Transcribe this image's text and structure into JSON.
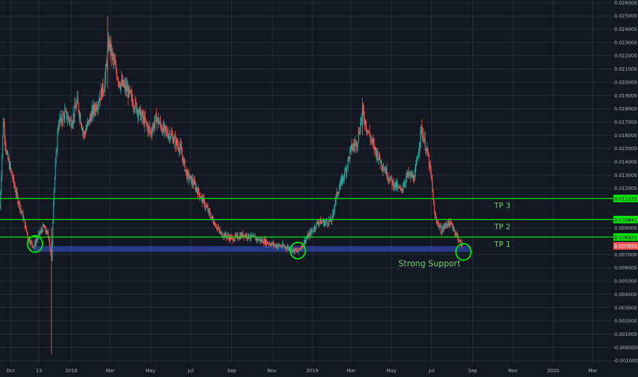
{
  "colors": {
    "background": "#131722",
    "grid": "#2a2e39",
    "up": "#26a69a",
    "down": "#ef5350",
    "level_line": "#00e600",
    "support_zone": "#2a3d8f",
    "annotation": "#6fd36f",
    "current_price_badge": "#f05454"
  },
  "chart_data": {
    "type": "candlestick",
    "grid": true,
    "y_axis": {
      "position": "right",
      "ylim": [
        -0.0012,
        0.0262
      ],
      "ticks": [
        0.026,
        0.025,
        0.024,
        0.023,
        0.022,
        0.021,
        0.02,
        0.019,
        0.018,
        0.017,
        0.016,
        0.015,
        0.014,
        0.013,
        0.012,
        0.009,
        0.007,
        0.006,
        0.005,
        0.004,
        0.003,
        0.002,
        0.001,
        0.0,
        -0.001
      ],
      "tick_labels": [
        "0.026000",
        "0.025000",
        "0.024000",
        "0.023000",
        "0.022000",
        "0.021000",
        "0.020000",
        "0.019000",
        "0.018000",
        "0.017000",
        "0.016000",
        "0.015000",
        "0.014000",
        "0.013000",
        "0.012000",
        "0.009000",
        "0.007000",
        "0.006000",
        "0.005000",
        "0.004000",
        "0.003000",
        "0.002000",
        "0.001000",
        "-0.000000",
        "-0.001000"
      ]
    },
    "x_axis": {
      "ticks": [
        {
          "label": "Oct",
          "date": "2017-10-01"
        },
        {
          "label": "13",
          "date": "2017-11-13"
        },
        {
          "label": "2018",
          "date": "2018-01-01"
        },
        {
          "label": "Mar",
          "date": "2018-03-01"
        },
        {
          "label": "May",
          "date": "2018-05-01"
        },
        {
          "label": "Jul",
          "date": "2018-07-01"
        },
        {
          "label": "Sep",
          "date": "2018-09-01"
        },
        {
          "label": "Nov",
          "date": "2018-11-01"
        },
        {
          "label": "2019",
          "date": "2019-01-01"
        },
        {
          "label": "Mar",
          "date": "2019-03-01"
        },
        {
          "label": "May",
          "date": "2019-05-01"
        },
        {
          "label": "Jul",
          "date": "2019-07-01"
        },
        {
          "label": "Sep",
          "date": "2019-09-01"
        },
        {
          "label": "Nov",
          "date": "2019-11-01"
        },
        {
          "label": "2020",
          "date": "2020-01-01"
        },
        {
          "label": "Mar",
          "date": "2020-03-01"
        }
      ]
    },
    "price_path": [
      [
        "2017-09-15",
        0.0105
      ],
      [
        "2017-09-20",
        0.0172
      ],
      [
        "2017-09-25",
        0.0145
      ],
      [
        "2017-10-02",
        0.0132
      ],
      [
        "2017-10-10",
        0.0115
      ],
      [
        "2017-10-20",
        0.0098
      ],
      [
        "2017-10-28",
        0.0082
      ],
      [
        "2017-11-05",
        0.0076
      ],
      [
        "2017-11-12",
        0.0084
      ],
      [
        "2017-11-20",
        0.0091
      ],
      [
        "2017-11-28",
        0.0083
      ],
      [
        "2017-12-02",
        0.0064
      ],
      [
        "2017-12-05",
        0.0112
      ],
      [
        "2017-12-12",
        0.0168
      ],
      [
        "2017-12-22",
        0.0176
      ],
      [
        "2018-01-01",
        0.017
      ],
      [
        "2018-01-10",
        0.0185
      ],
      [
        "2018-01-20",
        0.016
      ],
      [
        "2018-01-31",
        0.0175
      ],
      [
        "2018-02-10",
        0.0185
      ],
      [
        "2018-02-20",
        0.0198
      ],
      [
        "2018-02-27",
        0.023
      ],
      [
        "2018-03-05",
        0.0217
      ],
      [
        "2018-03-15",
        0.02
      ],
      [
        "2018-03-25",
        0.0195
      ],
      [
        "2018-04-05",
        0.0185
      ],
      [
        "2018-04-20",
        0.0172
      ],
      [
        "2018-05-01",
        0.0162
      ],
      [
        "2018-05-10",
        0.0173
      ],
      [
        "2018-05-20",
        0.0164
      ],
      [
        "2018-06-01",
        0.016
      ],
      [
        "2018-06-15",
        0.015
      ],
      [
        "2018-06-25",
        0.013
      ],
      [
        "2018-07-05",
        0.0124
      ],
      [
        "2018-07-20",
        0.011
      ],
      [
        "2018-08-01",
        0.0098
      ],
      [
        "2018-08-15",
        0.0086
      ],
      [
        "2018-09-01",
        0.0082
      ],
      [
        "2018-09-20",
        0.0085
      ],
      [
        "2018-10-01",
        0.0083
      ],
      [
        "2018-10-20",
        0.008
      ],
      [
        "2018-11-05",
        0.0077
      ],
      [
        "2018-11-20",
        0.0076
      ],
      [
        "2018-12-01",
        0.0074
      ],
      [
        "2018-12-10",
        0.0072
      ],
      [
        "2018-12-20",
        0.008
      ],
      [
        "2019-01-01",
        0.0088
      ],
      [
        "2019-01-10",
        0.0095
      ],
      [
        "2019-01-20",
        0.0094
      ],
      [
        "2019-01-31",
        0.0096
      ],
      [
        "2019-02-05",
        0.0112
      ],
      [
        "2019-02-20",
        0.0133
      ],
      [
        "2019-03-01",
        0.015
      ],
      [
        "2019-03-10",
        0.0155
      ],
      [
        "2019-03-18",
        0.0178
      ],
      [
        "2019-03-25",
        0.0165
      ],
      [
        "2019-04-05",
        0.015
      ],
      [
        "2019-04-20",
        0.0135
      ],
      [
        "2019-05-01",
        0.0125
      ],
      [
        "2019-05-15",
        0.0118
      ],
      [
        "2019-05-25",
        0.013
      ],
      [
        "2019-06-05",
        0.0128
      ],
      [
        "2019-06-15",
        0.0165
      ],
      [
        "2019-06-25",
        0.0145
      ],
      [
        "2019-07-01",
        0.0125
      ],
      [
        "2019-07-05",
        0.01
      ],
      [
        "2019-07-15",
        0.0088
      ],
      [
        "2019-07-25",
        0.0094
      ],
      [
        "2019-08-01",
        0.0092
      ],
      [
        "2019-08-10",
        0.0082
      ],
      [
        "2019-08-16",
        0.0076
      ]
    ],
    "spikes": [
      {
        "date": "2017-12-02",
        "low": -0.0005,
        "high": 0.009
      },
      {
        "date": "2018-02-25",
        "low": 0.0195,
        "high": 0.025
      },
      {
        "date": "2019-03-18",
        "low": 0.016,
        "high": 0.0188
      }
    ],
    "level_lines": [
      {
        "label": "TP 3",
        "value": 0.011231,
        "badge": "0.011231"
      },
      {
        "label": "TP 2",
        "value": 0.009641,
        "badge": "0.009641"
      },
      {
        "label": "TP 1",
        "value": 0.008322,
        "badge": "0.008322"
      }
    ],
    "current_price": {
      "value": 0.007656,
      "badge": "0.007656"
    },
    "support_zone": {
      "label": "Strong Support",
      "from": 0.0072,
      "to": 0.00764,
      "start": "2017-11-05",
      "end": "2019-08-28"
    },
    "circled_points": [
      {
        "date": "2017-11-07",
        "value": 0.0078
      },
      {
        "date": "2018-12-10",
        "value": 0.0073
      },
      {
        "date": "2019-08-18",
        "value": 0.0072
      }
    ]
  }
}
